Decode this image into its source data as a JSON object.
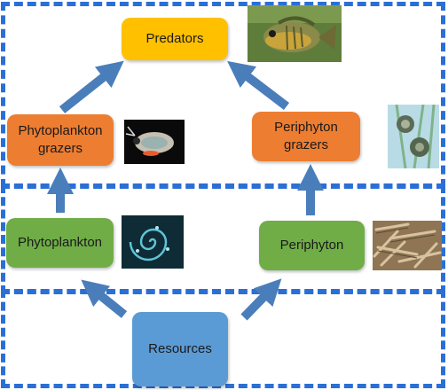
{
  "nodes": {
    "predators": {
      "label": "Predators",
      "color": "#ffc000"
    },
    "phytoplankton_grazers": {
      "line1": "Phytoplankton",
      "line2": "grazers",
      "color": "#ed7d31"
    },
    "periphyton_grazers": {
      "line1": "Periphyton",
      "line2": "grazers",
      "color": "#ed7d31"
    },
    "phytoplankton": {
      "label": "Phytoplankton",
      "color": "#70ad47"
    },
    "periphyton": {
      "label": "Periphyton",
      "color": "#70ad47"
    },
    "resources": {
      "label": "Resources",
      "color": "#5b9bd5"
    }
  },
  "arrow_color": "#4a7ebb",
  "zone_border_color": "#2b6fd6",
  "photos": [
    "fish-photo",
    "daphnia-photo",
    "snail-photo",
    "phytoplankton-photo",
    "diatom-photo"
  ]
}
